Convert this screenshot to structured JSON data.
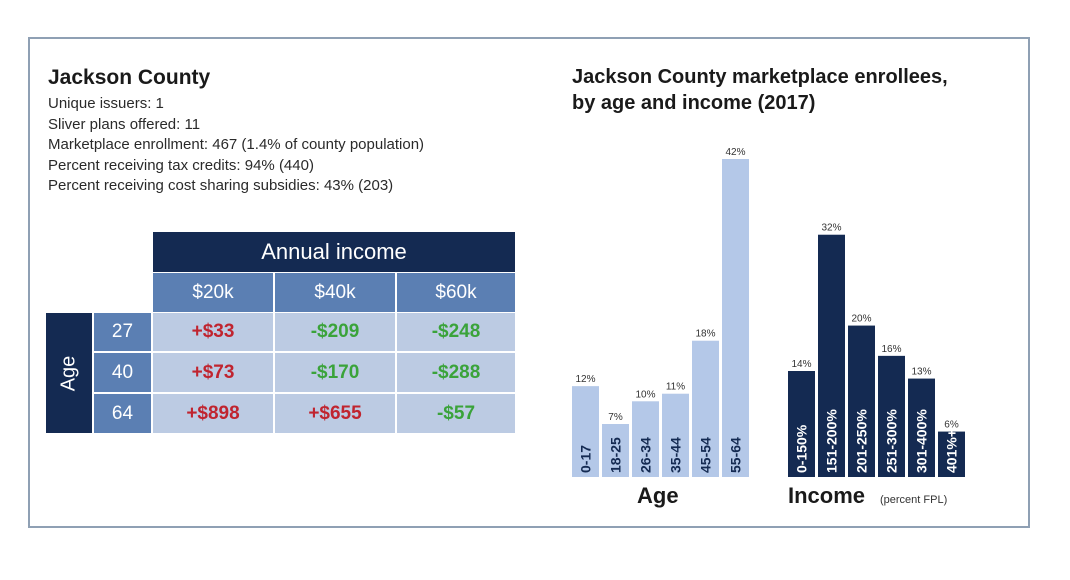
{
  "county": {
    "title": "Jackson County",
    "stats": [
      "Unique issuers: 1",
      "Sliver plans offered: 11",
      "Marketplace enrollment: 467 (1.4% of county population)",
      "Percent receiving tax credits: 94% (440)",
      "Percent receiving cost sharing subsidies: 43% (203)"
    ]
  },
  "table": {
    "header": "Annual income",
    "incomes": [
      "$20k",
      "$40k",
      "$60k"
    ],
    "age_label": "Age",
    "rows": [
      {
        "age": "27",
        "values": [
          "+$33",
          "-$209",
          "-$248"
        ]
      },
      {
        "age": "40",
        "values": [
          "+$73",
          "-$170",
          "-$288"
        ]
      },
      {
        "age": "64",
        "values": [
          "+$898",
          "+$655",
          "-$57"
        ]
      }
    ]
  },
  "colors": {
    "navy": "#142a52",
    "mid_blue": "#5b7fb3",
    "light_blue": "#bccbe3",
    "age_bar": "#b4c8e8",
    "income_bar": "#142a52",
    "positive": "#c0242f",
    "negative": "#3aa33a"
  },
  "chart_data": {
    "type": "bar",
    "title": "Jackson County marketplace enrollees, by age and income (2017)",
    "title_lines": [
      "Jackson County marketplace enrollees,",
      "by age and income (2017)"
    ],
    "unit": "%",
    "groups": [
      {
        "name": "Age",
        "xlabel": "Age",
        "xlabel_sub": "",
        "categories": [
          "0-17",
          "18-25",
          "26-34",
          "35-44",
          "45-54",
          "55-64"
        ],
        "values": [
          12,
          7,
          10,
          11,
          18,
          42
        ],
        "labels": [
          "12%",
          "7%",
          "10%",
          "11%",
          "18%",
          "42%"
        ]
      },
      {
        "name": "Income",
        "xlabel": "Income",
        "xlabel_sub": "(percent FPL)",
        "categories": [
          "0-150%",
          "151-200%",
          "201-250%",
          "251-300%",
          "301-400%",
          "401%+"
        ],
        "values": [
          14,
          32,
          20,
          16,
          13,
          6
        ],
        "labels": [
          "14%",
          "32%",
          "20%",
          "16%",
          "13%",
          "6%"
        ]
      }
    ],
    "ylim": [
      0,
      42
    ]
  }
}
